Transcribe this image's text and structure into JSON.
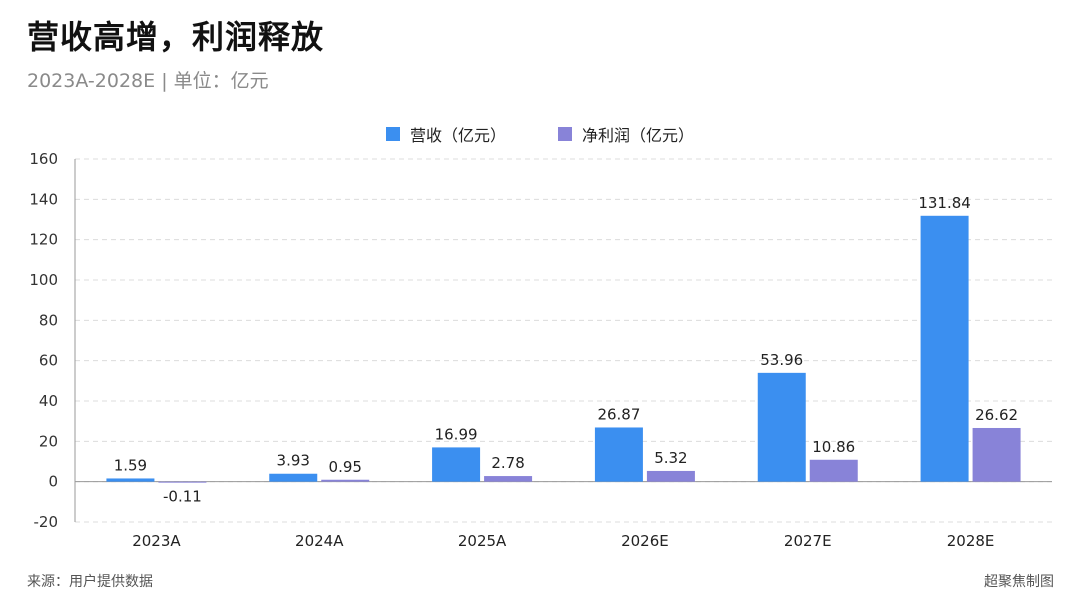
{
  "header": {
    "title": "营收高增，利润释放",
    "subtitle": "2023A-2028E  |  单位：亿元"
  },
  "footer": {
    "source": "来源：用户提供数据",
    "brand": "超聚焦制图"
  },
  "colors": {
    "revenue": "#3b8ff0",
    "profit": "#8883d8",
    "grid": "#dcdcdc",
    "axis": "#999999"
  },
  "chart_data": {
    "type": "bar",
    "categories": [
      "2023A",
      "2024A",
      "2025A",
      "2026E",
      "2027E",
      "2028E"
    ],
    "series": [
      {
        "name": "营收（亿元）",
        "values": [
          1.59,
          3.93,
          16.99,
          26.87,
          53.96,
          131.84
        ]
      },
      {
        "name": "净利润（亿元）",
        "values": [
          -0.11,
          0.95,
          2.78,
          5.32,
          10.86,
          26.62
        ]
      }
    ],
    "ylim": [
      -20,
      160
    ],
    "yticks": [
      -20,
      0,
      20,
      40,
      60,
      80,
      100,
      120,
      140,
      160
    ],
    "grid": true,
    "legend_position": "top-center"
  }
}
